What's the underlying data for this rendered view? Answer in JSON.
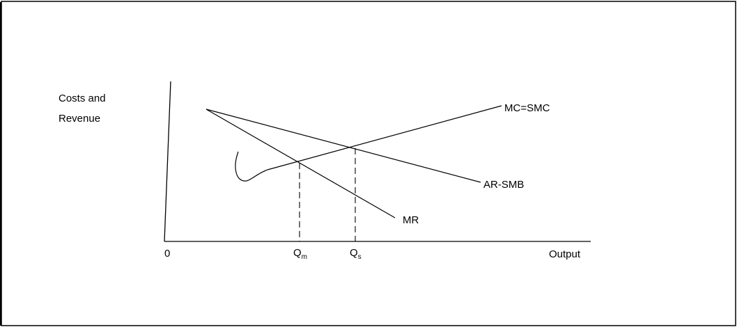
{
  "diagram": {
    "y_axis_label_line1": "Costs and",
    "y_axis_label_line2": "Revenue",
    "x_axis_label": "Output",
    "origin_label": "0",
    "curves": {
      "mc_label": "MC=SMC",
      "ar_label": "AR-SMB",
      "mr_label": "MR"
    },
    "quantities": {
      "qm_main": "Q",
      "qm_sub": "m",
      "qs_main": "Q",
      "qs_sub": "s"
    }
  },
  "colors": {
    "line": "#000000",
    "background": "#ffffff"
  }
}
